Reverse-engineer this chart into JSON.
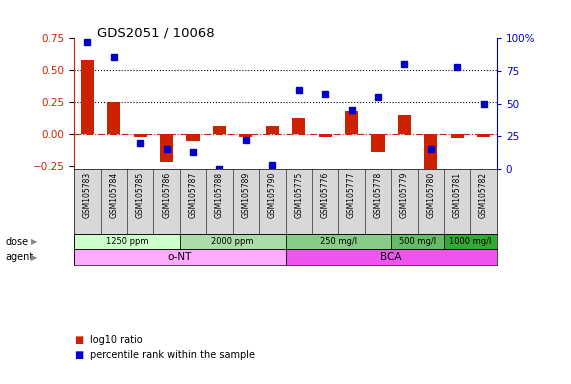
{
  "title": "GDS2051 / 10068",
  "samples": [
    "GSM105783",
    "GSM105784",
    "GSM105785",
    "GSM105786",
    "GSM105787",
    "GSM105788",
    "GSM105789",
    "GSM105790",
    "GSM105775",
    "GSM105776",
    "GSM105777",
    "GSM105778",
    "GSM105779",
    "GSM105780",
    "GSM105781",
    "GSM105782"
  ],
  "log10_ratio": [
    0.58,
    0.25,
    -0.02,
    -0.22,
    -0.05,
    0.06,
    -0.02,
    0.06,
    0.13,
    -0.02,
    0.18,
    -0.14,
    0.15,
    -0.27,
    -0.03,
    -0.02
  ],
  "percentile_rank": [
    97,
    86,
    20,
    15,
    13,
    0,
    22,
    3,
    60,
    57,
    45,
    55,
    80,
    15,
    78,
    50
  ],
  "ylim_left": [
    -0.27,
    0.75
  ],
  "ylim_right": [
    0,
    100
  ],
  "hlines": [
    0.5,
    0.25
  ],
  "bar_color": "#cc2200",
  "dot_color": "#0000cc",
  "zero_line_color": "#cc2200",
  "doses": [
    {
      "label": "1250 ppm",
      "start": 0,
      "end": 4,
      "color": "#ccffcc"
    },
    {
      "label": "2000 ppm",
      "start": 4,
      "end": 8,
      "color": "#aaddaa"
    },
    {
      "label": "250 mg/l",
      "start": 8,
      "end": 12,
      "color": "#88cc88"
    },
    {
      "label": "500 mg/l",
      "start": 12,
      "end": 14,
      "color": "#66bb66"
    },
    {
      "label": "1000 mg/l",
      "start": 14,
      "end": 16,
      "color": "#33aa33"
    }
  ],
  "agents": [
    {
      "label": "o-NT",
      "start": 0,
      "end": 8,
      "color": "#ffaaff"
    },
    {
      "label": "BCA",
      "start": 8,
      "end": 16,
      "color": "#ee55ee"
    }
  ],
  "dose_row_label": "dose",
  "agent_row_label": "agent",
  "legend_items": [
    {
      "color": "#cc2200",
      "label": "log10 ratio"
    },
    {
      "color": "#0000cc",
      "label": "percentile rank within the sample"
    }
  ],
  "sample_bg": "#d8d8d8",
  "title_color": "#000000",
  "left_axis_color": "#cc2200",
  "right_axis_color": "#0000cc"
}
